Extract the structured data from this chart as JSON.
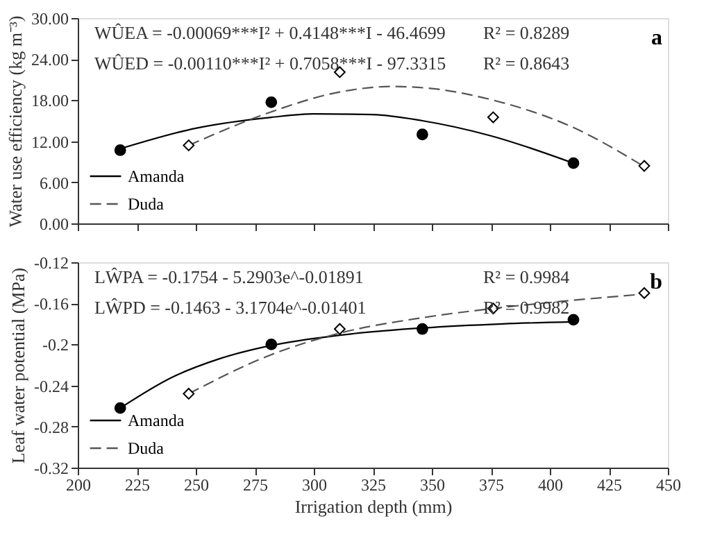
{
  "chart_data": [
    {
      "type": "line",
      "ylabel": "Water use efficiency (kg m⁻³)",
      "annotations": [
        "WÛEA = -0.00069***I² + 0.4148***I - 46.4699",
        "R² = 0.8289",
        "WÛED = -0.00110***I² + 0.7058***I - 97.3315",
        "R² = 0.8643",
        "a"
      ],
      "xlim": [
        200,
        450
      ],
      "xticks": [
        {
          "value": 200,
          "label": null
        },
        {
          "value": 225,
          "label": null
        },
        {
          "value": 250,
          "label": null
        },
        {
          "value": 275,
          "label": null
        },
        {
          "value": 300,
          "label": null
        },
        {
          "value": 325,
          "label": null
        },
        {
          "value": 350,
          "label": null
        },
        {
          "value": 375,
          "label": null
        },
        {
          "value": 400,
          "label": null
        },
        {
          "value": 425,
          "label": null
        },
        {
          "value": 450,
          "label": null
        }
      ],
      "ylim": [
        0,
        30
      ],
      "yticks": [
        {
          "value": 0,
          "label": "0.00"
        },
        {
          "value": 6,
          "label": "6.00"
        },
        {
          "value": 12,
          "label": "12.00"
        },
        {
          "value": 18,
          "label": "18.00"
        },
        {
          "value": 24,
          "label": "24.00"
        },
        {
          "value": 30,
          "label": "30.00"
        }
      ],
      "tick_labels": "y",
      "grid": false,
      "legend": "bottom left",
      "series": [
        {
          "name": "Amanda",
          "color": "#000000",
          "line_style": "solid",
          "marker": "none",
          "x": [
            218,
            250,
            282,
            300,
            325,
            346,
            375,
            410
          ],
          "values": [
            10.9,
            13.9,
            15.5,
            16.0,
            15.9,
            15.0,
            12.8,
            8.8
          ]
        },
        {
          "name": "Duda",
          "color": "#555555",
          "line_style": "dashed",
          "marker": "none",
          "x": [
            247,
            282,
            311,
            333,
            350,
            376,
            410,
            440
          ],
          "values": [
            11.4,
            16.3,
            19.2,
            20.0,
            19.7,
            18.0,
            14.0,
            8.3
          ]
        },
        {
          "type": "scatter",
          "color": "#000000",
          "marker": "circle",
          "x": [
            218,
            282,
            346,
            410
          ],
          "values": [
            10.7,
            17.7,
            13.0,
            8.8
          ]
        },
        {
          "type": "scatter",
          "color": "#000000",
          "marker": "diamond",
          "x": [
            247,
            311,
            376,
            440
          ],
          "values": [
            11.4,
            22.1,
            15.5,
            8.4
          ]
        }
      ]
    },
    {
      "type": "line",
      "ylabel": "Leaf water potential (MPa)",
      "xlabel": "Irrigation depth (mm)",
      "annotations": [
        "LŴPA = -0.1754 - 5.2903e^-0.01891",
        "R² = 0.9984",
        "LŴPD = -0.1463 - 3.1704e^-0.01401",
        "R² = 0.9982",
        "b"
      ],
      "xlim": [
        200,
        450
      ],
      "xticks": [
        200,
        225,
        250,
        275,
        300,
        325,
        350,
        375,
        400,
        425,
        450
      ],
      "ylim": [
        -0.32,
        -0.12
      ],
      "yticks": [
        -0.32,
        -0.28,
        -0.24,
        -0.2,
        -0.16,
        -0.12
      ],
      "grid": false,
      "legend": "bottom left",
      "series": [
        {
          "name": "Amanda",
          "color": "#000000",
          "line_style": "solid",
          "marker": "none",
          "x": [
            218,
            240,
            260,
            282,
            311,
            346,
            380,
            410
          ],
          "values": [
            -0.262,
            -0.232,
            -0.214,
            -0.201,
            -0.191,
            -0.184,
            -0.18,
            -0.178
          ]
        },
        {
          "name": "Duda",
          "color": "#555555",
          "line_style": "dashed",
          "marker": "none",
          "x": [
            247,
            282,
            311,
            346,
            376,
            410,
            440
          ],
          "values": [
            -0.248,
            -0.21,
            -0.189,
            -0.174,
            -0.165,
            -0.157,
            -0.151
          ]
        },
        {
          "type": "scatter",
          "color": "#000000",
          "marker": "circle",
          "x": [
            218,
            282,
            346,
            410
          ],
          "values": [
            -0.262,
            -0.2,
            -0.185,
            -0.176
          ]
        },
        {
          "type": "scatter",
          "color": "#000000",
          "marker": "diamond",
          "x": [
            247,
            311,
            376,
            440
          ],
          "values": [
            -0.248,
            -0.185,
            -0.165,
            -0.15
          ]
        }
      ]
    }
  ]
}
